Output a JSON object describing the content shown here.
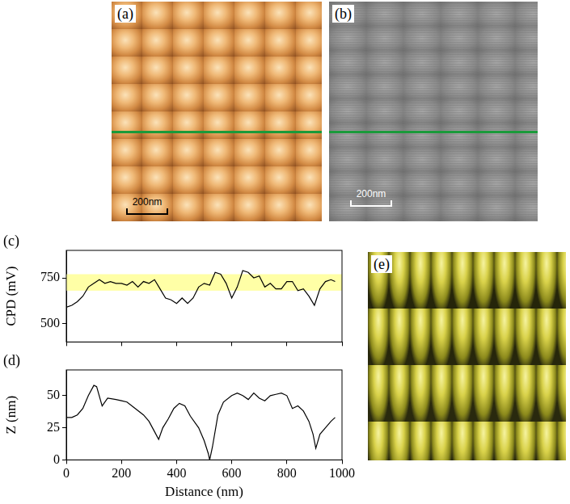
{
  "images": [
    {
      "label": "(a)",
      "scale_bar": "200nm"
    },
    {
      "label": "(b)",
      "scale_bar": "200nm"
    },
    {
      "label": "(e)"
    }
  ],
  "chart_data": [
    {
      "type": "line",
      "label": "(c)",
      "y_label": "CPD (mV)",
      "color": "#000000",
      "grid": false,
      "tick_labels": "y",
      "highlight_range": [
        680,
        770
      ],
      "xlim": [
        0,
        1000
      ],
      "xticks": [
        0,
        200,
        400,
        600,
        800,
        1000
      ],
      "ylim": [
        400,
        900
      ],
      "yticks": [
        500,
        750
      ],
      "x": [
        0,
        20,
        40,
        60,
        80,
        100,
        120,
        140,
        160,
        180,
        200,
        220,
        240,
        260,
        280,
        300,
        320,
        340,
        360,
        380,
        400,
        420,
        440,
        460,
        480,
        500,
        520,
        540,
        560,
        580,
        600,
        620,
        640,
        660,
        680,
        700,
        720,
        740,
        760,
        780,
        800,
        820,
        840,
        860,
        880,
        900,
        920,
        940,
        960,
        975
      ],
      "values": [
        590,
        600,
        620,
        650,
        700,
        720,
        740,
        720,
        730,
        720,
        720,
        710,
        730,
        700,
        730,
        720,
        740,
        690,
        640,
        630,
        610,
        640,
        610,
        640,
        700,
        720,
        710,
        780,
        770,
        720,
        640,
        700,
        790,
        780,
        750,
        760,
        700,
        720,
        690,
        690,
        730,
        730,
        680,
        690,
        650,
        600,
        690,
        730,
        740,
        730
      ]
    },
    {
      "type": "line",
      "label": "(d)",
      "x_label": "Distance (nm)",
      "y_label": "Z (nm)",
      "color": "#000000",
      "grid": false,
      "xlim": [
        0,
        1000
      ],
      "xticks": [
        0,
        200,
        400,
        600,
        800,
        1000
      ],
      "ylim": [
        0,
        70
      ],
      "yticks": [
        0,
        25,
        50
      ],
      "x": [
        0,
        20,
        40,
        60,
        80,
        100,
        110,
        130,
        150,
        180,
        200,
        220,
        250,
        280,
        300,
        320,
        335,
        350,
        370,
        390,
        410,
        430,
        450,
        480,
        500,
        515,
        520,
        530,
        550,
        570,
        600,
        620,
        640,
        660,
        680,
        700,
        720,
        740,
        760,
        780,
        800,
        820,
        840,
        860,
        880,
        895,
        905,
        920,
        940,
        960,
        975
      ],
      "values": [
        33,
        33,
        35,
        40,
        50,
        58,
        57,
        42,
        48,
        47,
        46,
        45,
        40,
        35,
        30,
        22,
        16,
        25,
        32,
        40,
        44,
        42,
        34,
        25,
        15,
        5,
        0,
        10,
        35,
        45,
        50,
        52,
        50,
        47,
        52,
        48,
        46,
        50,
        51,
        52,
        50,
        40,
        42,
        38,
        30,
        20,
        9,
        20,
        25,
        30,
        33
      ]
    }
  ]
}
